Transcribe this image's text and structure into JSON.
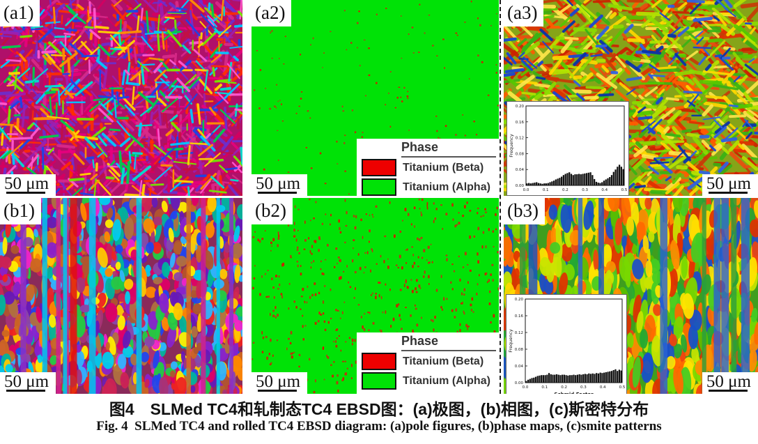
{
  "figure": {
    "caption_zh": "图4　SLMed TC4和轧制态TC4 EBSD图：(a)极图，(b)相图，(c)斯密特分布",
    "caption_en": "Fig. 4  SLMed TC4 and rolled TC4 EBSD diagram: (a)pole figures, (b)phase maps, (c)smite patterns"
  },
  "legend": {
    "title": "Phase",
    "items": [
      {
        "label": "Titanium (Beta)",
        "color": "#ee0000"
      },
      {
        "label": "Titanium (Alpha)",
        "color": "#00e206"
      }
    ]
  },
  "panels": {
    "a1": {
      "label": "(a1)",
      "scale_bar": "50 μm",
      "texture": {
        "seed": 11,
        "bg": "#b0106a",
        "layers": [
          {
            "kind": "lath",
            "count": 1000,
            "opacity": 0.9,
            "len": [
              10,
              36
            ],
            "wid": [
              2,
              5
            ],
            "angles": [
              [
                -52,
                -38
              ],
              [
                38,
                52
              ],
              [
                -8,
                8
              ],
              [
                82,
                98
              ]
            ],
            "palette": [
              "#e8007e",
              "#d40060",
              "#c21044",
              "#ff2e00",
              "#d82a8a",
              "#9c1fb0",
              "#6a2fd0"
            ]
          },
          {
            "kind": "lath",
            "count": 430,
            "opacity": 0.95,
            "len": [
              10,
              34
            ],
            "wid": [
              2,
              4
            ],
            "angles": [
              [
                -52,
                -38
              ],
              [
                38,
                52
              ],
              [
                -8,
                8
              ],
              [
                82,
                98
              ]
            ],
            "palette": [
              "#00c8ff",
              "#00e0d0",
              "#1a46e6",
              "#ffd400",
              "#ff9000",
              "#00cc4e",
              "#74e600",
              "#ff5ad0"
            ]
          }
        ]
      }
    },
    "a2": {
      "label": "(a2)",
      "scale_bar": "50 μm",
      "texture": {
        "seed": 22,
        "bg": "#00e206",
        "layers": [
          {
            "kind": "dot",
            "count": 150,
            "opacity": 0.9,
            "len": [
              1.5,
              3
            ],
            "wid": [
              1.5,
              3
            ],
            "palette": [
              "#dd1100",
              "#bb3311"
            ]
          }
        ]
      }
    },
    "a3": {
      "label": "(a3)",
      "scale_bar": "50 μm",
      "texture": {
        "seed": 33,
        "bg": "#86a418",
        "layers": [
          {
            "kind": "lath",
            "count": 520,
            "opacity": 0.92,
            "len": [
              14,
              44
            ],
            "wid": [
              3,
              6
            ],
            "angles": [
              [
                -52,
                -34
              ],
              [
                34,
                52
              ],
              [
                -10,
                10
              ]
            ],
            "palette": [
              "#e03000",
              "#cc2200",
              "#ff5c00",
              "#e84d10",
              "#c83a08"
            ]
          },
          {
            "kind": "lath",
            "count": 540,
            "opacity": 0.9,
            "len": [
              12,
              40
            ],
            "wid": [
              3,
              6
            ],
            "angles": [
              [
                -52,
                -34
              ],
              [
                34,
                52
              ],
              [
                -10,
                10
              ]
            ],
            "palette": [
              "#54c800",
              "#8cdc00",
              "#b4e400",
              "#36b414",
              "#ffd800",
              "#ffe64a"
            ]
          },
          {
            "kind": "lath",
            "count": 160,
            "opacity": 0.95,
            "len": [
              10,
              30
            ],
            "wid": [
              2,
              5
            ],
            "angles": [
              [
                -52,
                -34
              ],
              [
                34,
                52
              ],
              [
                -10,
                10
              ]
            ],
            "palette": [
              "#1a46d2",
              "#2f62e0",
              "#0a34a8"
            ]
          }
        ]
      }
    },
    "b1": {
      "label": "(b1)",
      "scale_bar": "50 μm",
      "texture": {
        "seed": 44,
        "bg": "#8a2a5a",
        "layers": [
          {
            "kind": "grain",
            "count": 1050,
            "opacity": 0.95,
            "len": [
              5,
              16
            ],
            "wid": [
              3,
              9
            ],
            "angles": [
              [
                -12,
                12
              ]
            ],
            "palette": [
              "#cc2255",
              "#a83378",
              "#8822cc",
              "#6618b8",
              "#cc6622",
              "#b0552e",
              "#00ccee",
              "#2fb4ff",
              "#ffee00",
              "#ffc800",
              "#2244ee",
              "#ee2222",
              "#22cc44",
              "#b07040",
              "#ee22cc",
              "#dd0066",
              "#8a46aa",
              "#ff8800",
              "#00b49c"
            ]
          },
          {
            "kind": "stripe",
            "count": 12,
            "opacity": 0.85,
            "wid": [
              4,
              10
            ],
            "palette": [
              "#e01010",
              "#8a30c8",
              "#00c8ee",
              "#d86a20",
              "#cc2090"
            ]
          }
        ]
      }
    },
    "b2": {
      "label": "(b2)",
      "scale_bar": "50 μm",
      "texture": {
        "seed": 55,
        "bg": "#00e206",
        "layers": [
          {
            "kind": "dot",
            "count": 560,
            "opacity": 0.9,
            "len": [
              2,
              5
            ],
            "wid": [
              1.5,
              3
            ],
            "palette": [
              "#dd1100",
              "#c82a10"
            ]
          }
        ]
      }
    },
    "b3": {
      "label": "(b3)",
      "scale_bar": "50 μm",
      "texture": {
        "seed": 66,
        "bg": "#3f9e1e",
        "layers": [
          {
            "kind": "grain",
            "count": 880,
            "opacity": 0.93,
            "len": [
              8,
              24
            ],
            "wid": [
              4,
              9
            ],
            "angles": [
              [
                -8,
                8
              ]
            ],
            "palette": [
              "#e03000",
              "#ff6a00",
              "#ff8c00",
              "#ffd800",
              "#c8e400",
              "#44cc22",
              "#78d800",
              "#22a834",
              "#1850c8",
              "#ee4410",
              "#ffe400",
              "#5abe00"
            ]
          },
          {
            "kind": "stripe",
            "count": 10,
            "opacity": 0.8,
            "wid": [
              6,
              13
            ],
            "palette": [
              "#1850c8",
              "#2a62d4",
              "#2b9e3c"
            ]
          }
        ]
      }
    }
  },
  "chart_data": [
    {
      "id": "a3_inset",
      "type": "bar",
      "title": "",
      "xlabel": "",
      "ylabel": "Frequency",
      "xlim": [
        0.0,
        0.5
      ],
      "ylim": [
        0.0,
        0.2
      ],
      "xticks": [
        0.0,
        0.1,
        0.2,
        0.3,
        0.4,
        0.5
      ],
      "yticks": [
        0.0,
        0.04,
        0.08,
        0.12,
        0.16,
        0.2
      ],
      "bin_width": 0.01,
      "x_start": 0.0,
      "values": [
        0.005,
        0.006,
        0.005,
        0.006,
        0.007,
        0.008,
        0.006,
        0.005,
        0.004,
        0.005,
        0.005,
        0.006,
        0.008,
        0.01,
        0.012,
        0.015,
        0.017,
        0.019,
        0.022,
        0.026,
        0.029,
        0.031,
        0.033,
        0.029,
        0.026,
        0.028,
        0.028,
        0.029,
        0.028,
        0.029,
        0.03,
        0.031,
        0.032,
        0.033,
        0.026,
        0.016,
        0.009,
        0.007,
        0.006,
        0.008,
        0.012,
        0.015,
        0.018,
        0.021,
        0.026,
        0.034,
        0.04,
        0.047,
        0.052,
        0.047,
        0.041
      ]
    },
    {
      "id": "b3_inset",
      "type": "bar",
      "title": "",
      "xlabel": "Schmid Factor",
      "ylabel": "Frequency",
      "xlim": [
        0.0,
        0.5
      ],
      "ylim": [
        0.0,
        0.2
      ],
      "xticks": [
        0.0,
        0.1,
        0.2,
        0.3,
        0.4,
        0.5
      ],
      "yticks": [
        0.0,
        0.04,
        0.08,
        0.12,
        0.16,
        0.2
      ],
      "bin_width": 0.01,
      "x_start": 0.0,
      "values": [
        0.004,
        0.007,
        0.009,
        0.011,
        0.012,
        0.014,
        0.016,
        0.017,
        0.018,
        0.018,
        0.018,
        0.019,
        0.023,
        0.02,
        0.019,
        0.019,
        0.02,
        0.019,
        0.018,
        0.019,
        0.019,
        0.018,
        0.017,
        0.018,
        0.018,
        0.019,
        0.018,
        0.019,
        0.02,
        0.019,
        0.02,
        0.021,
        0.02,
        0.022,
        0.021,
        0.022,
        0.021,
        0.023,
        0.022,
        0.024,
        0.023,
        0.024,
        0.025,
        0.026,
        0.027,
        0.028,
        0.03,
        0.032,
        0.028,
        0.031,
        0.029
      ]
    }
  ]
}
